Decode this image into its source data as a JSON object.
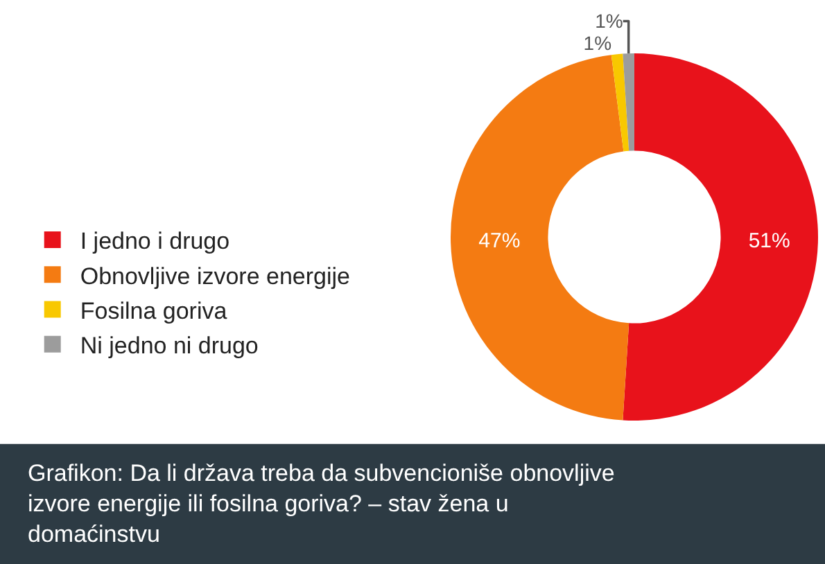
{
  "chart_data": {
    "type": "donut",
    "categories": [
      "I jedno i drugo",
      "Obnovljive izvore energije",
      "Fosilna goriva",
      "Ni jedno ni drugo"
    ],
    "values": [
      51,
      47,
      1,
      1
    ],
    "colors": [
      "#e8121b",
      "#f47b12",
      "#f8c800",
      "#9c9c9c"
    ],
    "value_labels": [
      "51%",
      "47%",
      "1%",
      "1%"
    ],
    "legend": "left",
    "annotations": [
      "Grafikon: Da li država treba da subvencioniše obnovljive izvore energije ili fosilna goriva? – stav žena u domaćinstvu"
    ]
  }
}
